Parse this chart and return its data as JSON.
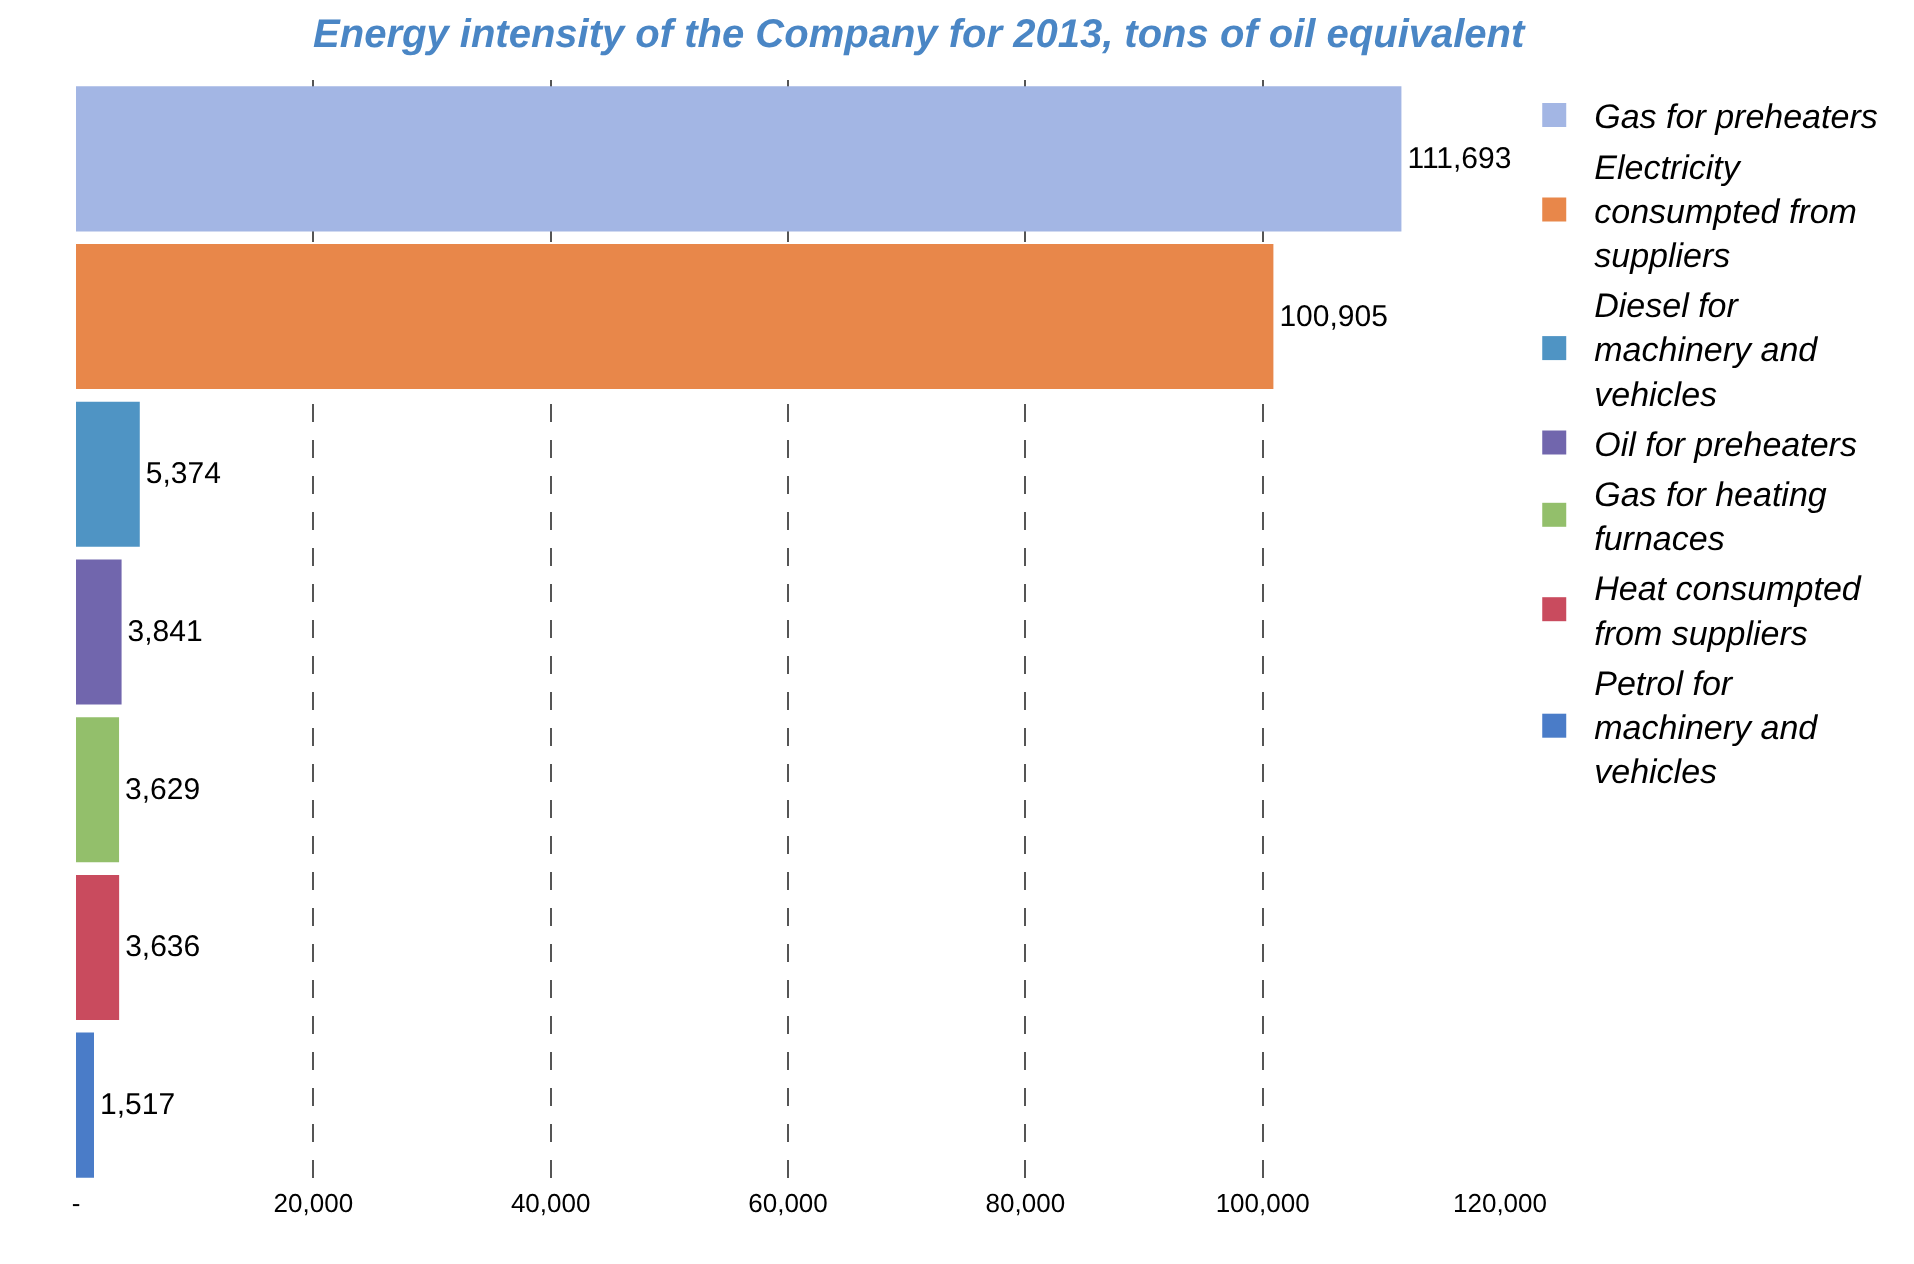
{
  "chart_data": {
    "type": "bar",
    "orientation": "horizontal",
    "title": "Energy intensity of the Company for 2013, tons of oil equivalent",
    "categories": [
      null,
      null,
      null,
      null,
      null,
      null,
      null
    ],
    "series": [
      {
        "name": "Gas for preheaters",
        "color": "#a3b6e4",
        "values": [
          111693,
          null,
          null,
          null,
          null,
          null,
          null
        ],
        "value_labels": [
          "111,693",
          null,
          null,
          null,
          null,
          null,
          null
        ]
      },
      {
        "name": "Electricity consumpted from suppliers",
        "color": "#e8874a",
        "values": [
          null,
          100905,
          null,
          null,
          null,
          null,
          null
        ],
        "value_labels": [
          null,
          "100,905",
          null,
          null,
          null,
          null,
          null
        ]
      },
      {
        "name": "Diesel for machinery and vehicles",
        "color": "#4f94c4",
        "values": [
          null,
          null,
          5374,
          null,
          null,
          null,
          null
        ],
        "value_labels": [
          null,
          null,
          "5,374",
          null,
          null,
          null,
          null
        ]
      },
      {
        "name": "Oil for preheaters",
        "color": "#7166ad",
        "values": [
          null,
          null,
          null,
          3841,
          null,
          null,
          null
        ],
        "value_labels": [
          null,
          null,
          null,
          "3,841",
          null,
          null,
          null
        ]
      },
      {
        "name": "Gas for heating furnaces",
        "color": "#93bf6b",
        "values": [
          null,
          null,
          null,
          null,
          3629,
          null,
          null
        ],
        "value_labels": [
          null,
          null,
          null,
          null,
          "3,629",
          null,
          null
        ]
      },
      {
        "name": "Heat consumpted from suppliers",
        "color": "#c94b5e",
        "values": [
          null,
          null,
          null,
          null,
          null,
          3636,
          null
        ],
        "value_labels": [
          null,
          null,
          null,
          null,
          null,
          "3,636",
          null
        ]
      },
      {
        "name": "Petrol for machinery and vehicles",
        "color": "#4a7cc8",
        "values": [
          null,
          null,
          null,
          null,
          null,
          null,
          1517
        ],
        "value_labels": [
          null,
          null,
          null,
          null,
          null,
          null,
          "1,517"
        ]
      }
    ],
    "xlim": [
      0,
      120000
    ],
    "xticks": [
      {
        "value": 0,
        "label": "-"
      },
      {
        "value": 20000,
        "label": "20,000"
      },
      {
        "value": 40000,
        "label": "40,000"
      },
      {
        "value": 60000,
        "label": "60,000"
      },
      {
        "value": 80000,
        "label": "80,000"
      },
      {
        "value": 100000,
        "label": "100,000"
      },
      {
        "value": 120000,
        "label": "120,000"
      }
    ],
    "grid": "x",
    "legend": "right",
    "tick_labels": "x"
  }
}
